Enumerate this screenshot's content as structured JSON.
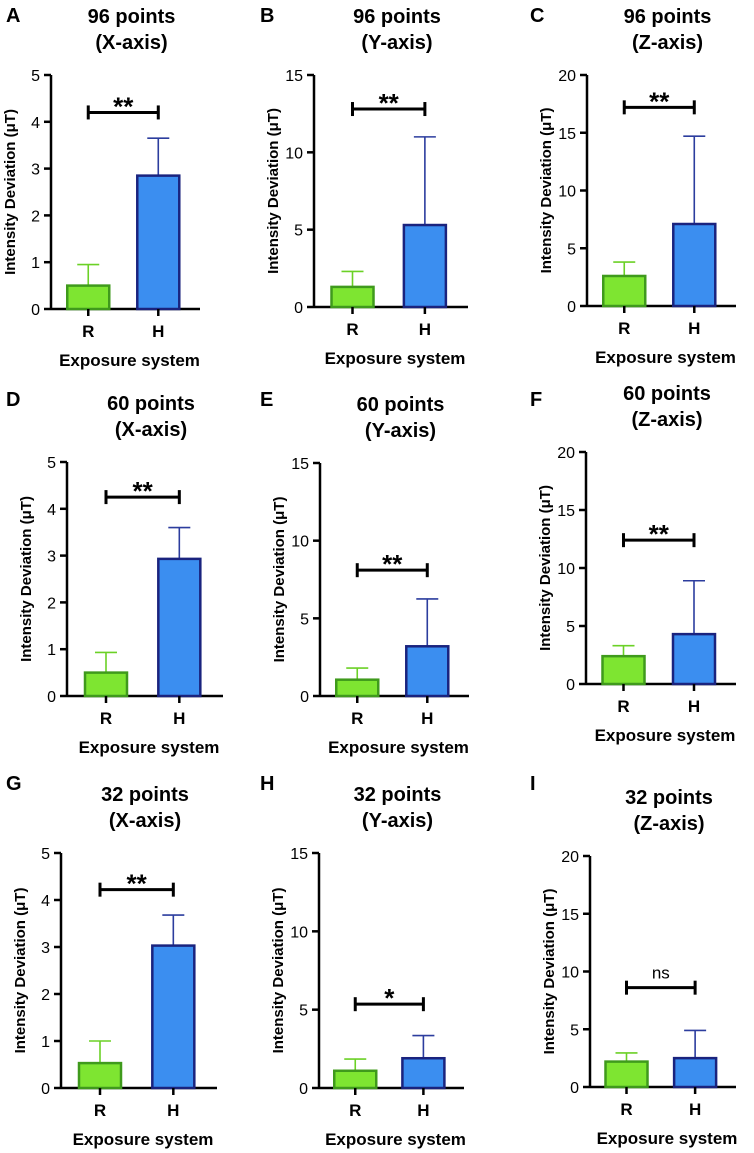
{
  "figure": {
    "colors": {
      "R": "#7ee531",
      "R_edge": "#3f9a1c",
      "H": "#3b8ef0",
      "H_edge": "#1a237e",
      "err_R": "#6bd126",
      "err_H": "#2c3d9e",
      "axis": "#000000"
    },
    "shared": {
      "ylabel": "Intensity Deviation (μT)",
      "xlabel": "Exposure system",
      "categories": [
        "R",
        "H"
      ]
    }
  },
  "chart_data": [
    {
      "type": "bar",
      "panel_letter": "A",
      "title_line1": "96 points",
      "title_line2": "(X-axis)",
      "categories": [
        "R",
        "H"
      ],
      "values": [
        0.5,
        2.85
      ],
      "errors": [
        0.45,
        0.8
      ],
      "ylim": [
        0,
        5
      ],
      "yticks": [
        0,
        1,
        2,
        3,
        4,
        5
      ],
      "significance": "**",
      "sig_y": 4.2,
      "xlabel": "Exposure system",
      "ylabel": "Intensity Deviation (μT)"
    },
    {
      "type": "bar",
      "panel_letter": "B",
      "title_line1": "96 points",
      "title_line2": "(Y-axis)",
      "categories": [
        "R",
        "H"
      ],
      "values": [
        1.3,
        5.3
      ],
      "errors": [
        1.0,
        5.7
      ],
      "ylim": [
        0,
        15
      ],
      "yticks": [
        0,
        5,
        10,
        15
      ],
      "significance": "**",
      "sig_y": 12.8,
      "xlabel": "Exposure system",
      "ylabel": "Intensity Deviation (μT)"
    },
    {
      "type": "bar",
      "panel_letter": "C",
      "title_line1": "96 points",
      "title_line2": "(Z-axis)",
      "categories": [
        "R",
        "H"
      ],
      "values": [
        2.6,
        7.1
      ],
      "errors": [
        1.2,
        7.6
      ],
      "ylim": [
        0,
        20
      ],
      "yticks": [
        0,
        5,
        10,
        15,
        20
      ],
      "significance": "**",
      "sig_y": 17.2,
      "xlabel": "Exposure system",
      "ylabel": "Intensity Deviation (μT)"
    },
    {
      "type": "bar",
      "panel_letter": "D",
      "title_line1": "60 points",
      "title_line2": "(X-axis)",
      "categories": [
        "R",
        "H"
      ],
      "values": [
        0.5,
        2.93
      ],
      "errors": [
        0.43,
        0.67
      ],
      "ylim": [
        0,
        5
      ],
      "yticks": [
        0,
        1,
        2,
        3,
        4,
        5
      ],
      "significance": "**",
      "sig_y": 4.25,
      "xlabel": "Exposure system",
      "ylabel": "Intensity Deviation (μT)"
    },
    {
      "type": "bar",
      "panel_letter": "E",
      "title_line1": "60 points",
      "title_line2": "(Y-axis)",
      "categories": [
        "R",
        "H"
      ],
      "values": [
        1.05,
        3.2
      ],
      "errors": [
        0.75,
        3.05
      ],
      "ylim": [
        0,
        15
      ],
      "yticks": [
        0,
        5,
        10,
        15
      ],
      "significance": "**",
      "sig_y": 8.1,
      "xlabel": "Exposure system",
      "ylabel": "Intensity Deviation (μT)"
    },
    {
      "type": "bar",
      "panel_letter": "F",
      "title_line1": "60 points",
      "title_line2": "(Z-axis)",
      "categories": [
        "R",
        "H"
      ],
      "values": [
        2.4,
        4.3
      ],
      "errors": [
        0.9,
        4.6
      ],
      "ylim": [
        0,
        20
      ],
      "yticks": [
        0,
        5,
        10,
        15,
        20
      ],
      "significance": "**",
      "sig_y": 12.4,
      "xlabel": "Exposure system",
      "ylabel": "Intensity Deviation (μT)"
    },
    {
      "type": "bar",
      "panel_letter": "G",
      "title_line1": "32 points",
      "title_line2": "(X-axis)",
      "categories": [
        "R",
        "H"
      ],
      "values": [
        0.53,
        3.03
      ],
      "errors": [
        0.47,
        0.65
      ],
      "ylim": [
        0,
        5
      ],
      "yticks": [
        0,
        1,
        2,
        3,
        4,
        5
      ],
      "significance": "**",
      "sig_y": 4.22,
      "xlabel": "Exposure system",
      "ylabel": "Intensity Deviation (μT)"
    },
    {
      "type": "bar",
      "panel_letter": "H",
      "title_line1": "32 points",
      "title_line2": "(Y-axis)",
      "categories": [
        "R",
        "H"
      ],
      "values": [
        1.1,
        1.9
      ],
      "errors": [
        0.75,
        1.45
      ],
      "ylim": [
        0,
        15
      ],
      "yticks": [
        0,
        5,
        10,
        15
      ],
      "significance": "*",
      "sig_y": 5.35,
      "xlabel": "Exposure system",
      "ylabel": "Intensity Deviation (μT)"
    },
    {
      "type": "bar",
      "panel_letter": "I",
      "title_line1": "32 points",
      "title_line2": "(Z-axis)",
      "categories": [
        "R",
        "H"
      ],
      "values": [
        2.2,
        2.5
      ],
      "errors": [
        0.75,
        2.4
      ],
      "ylim": [
        0,
        20
      ],
      "yticks": [
        0,
        5,
        10,
        15,
        20
      ],
      "significance": "ns",
      "sig_y": 8.6,
      "xlabel": "Exposure system",
      "ylabel": "Intensity Deviation (μT)"
    }
  ]
}
